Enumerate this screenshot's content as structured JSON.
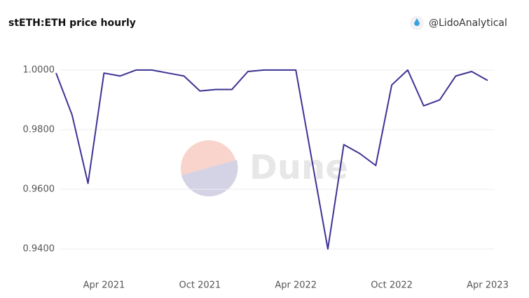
{
  "header": {
    "author": "@LidoAnalytical",
    "watermark": "Dune"
  },
  "chart_data": {
    "type": "line",
    "title": "stETH:ETH price hourly",
    "x": [
      "2021-01",
      "2021-02",
      "2021-03",
      "2021-04",
      "2021-05",
      "2021-06",
      "2021-07",
      "2021-08",
      "2021-09",
      "2021-10",
      "2021-11",
      "2021-12",
      "2022-01",
      "2022-02",
      "2022-03",
      "2022-04",
      "2022-05",
      "2022-06",
      "2022-07",
      "2022-08",
      "2022-09",
      "2022-10",
      "2022-11",
      "2022-12",
      "2023-01",
      "2023-02",
      "2023-03",
      "2023-04"
    ],
    "series": [
      {
        "name": "stETH:ETH",
        "color": "#3d3393",
        "values": [
          0.999,
          0.985,
          0.962,
          0.999,
          0.998,
          1.0,
          1.0,
          0.999,
          0.998,
          0.993,
          0.9935,
          0.9935,
          0.9995,
          1.0,
          1.0,
          1.0,
          0.97,
          0.94,
          0.975,
          0.972,
          0.968,
          0.995,
          1.0,
          0.988,
          0.99,
          0.998,
          0.9995,
          0.9965
        ]
      }
    ],
    "xlim": [
      "2021-01",
      "2023-04"
    ],
    "xticks": [
      {
        "value": "2021-04",
        "label": "Apr 2021"
      },
      {
        "value": "2021-10",
        "label": "Oct 2021"
      },
      {
        "value": "2022-04",
        "label": "Apr 2022"
      },
      {
        "value": "2022-10",
        "label": "Oct 2022"
      },
      {
        "value": "2023-04",
        "label": "Apr 2023"
      }
    ],
    "ylim": [
      0.9318,
      1.0075
    ],
    "yticks": [
      {
        "value": 0.94,
        "label": "0.9400"
      },
      {
        "value": 0.96,
        "label": "0.9600"
      },
      {
        "value": 0.98,
        "label": "0.9800"
      },
      {
        "value": 1.0,
        "label": "1.0000"
      }
    ],
    "grid": true
  }
}
